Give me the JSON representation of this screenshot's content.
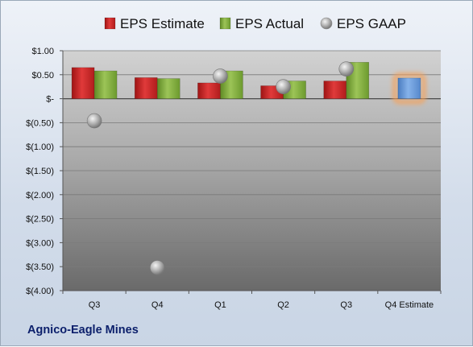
{
  "company": "Agnico-Eagle Mines",
  "legend": [
    {
      "key": "estimate",
      "label": "EPS Estimate",
      "color": "#d42a2a"
    },
    {
      "key": "actual",
      "label": "EPS Actual",
      "color": "#8db648"
    },
    {
      "key": "gaap",
      "label": "EPS GAAP",
      "color": "#a8a8a8"
    }
  ],
  "chart_data": {
    "type": "bar",
    "categories": [
      "Q3",
      "Q4",
      "Q1",
      "Q2",
      "Q3",
      "Q4 Estimate"
    ],
    "ylim": [
      -4.0,
      1.0
    ],
    "yticks": [
      1.0,
      0.5,
      0,
      -0.5,
      -1.0,
      -1.5,
      -2.0,
      -2.5,
      -3.0,
      -3.5,
      -4.0
    ],
    "ytick_labels": [
      "$1.00",
      "$0.50",
      "$-",
      "$(0.50)",
      "$(1.00)",
      "$(1.50)",
      "$(2.00)",
      "$(2.50)",
      "$(3.00)",
      "$(3.50)",
      "$(4.00)"
    ],
    "series": [
      {
        "name": "EPS Estimate",
        "values": [
          0.65,
          0.44,
          0.33,
          0.27,
          0.37,
          null
        ]
      },
      {
        "name": "EPS Actual",
        "values": [
          0.58,
          0.42,
          0.58,
          0.37,
          0.76,
          null
        ]
      },
      {
        "name": "EPS GAAP",
        "values": [
          -0.46,
          -3.52,
          0.47,
          0.25,
          0.62,
          null
        ]
      }
    ],
    "forecast": {
      "category": "Q4 Estimate",
      "value": 0.43,
      "color": "#6f9fdc",
      "glow": "#f6a25a"
    },
    "grid": true,
    "legend_position": "top"
  }
}
